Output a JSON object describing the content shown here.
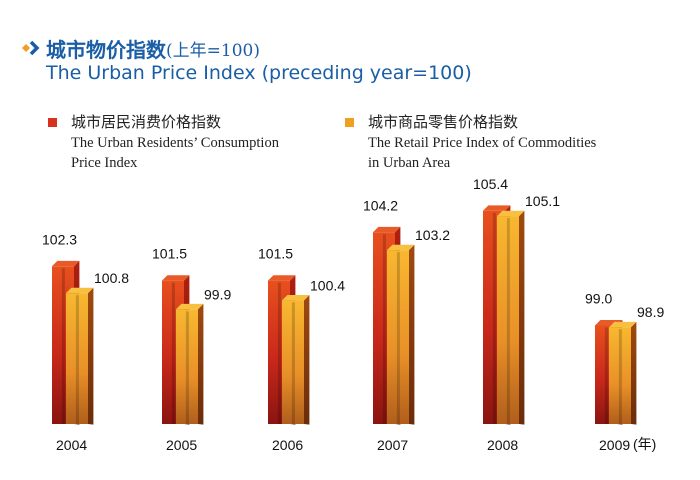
{
  "header": {
    "title_cn": "城市物价指数",
    "title_cn_suffix": "(上年=100)",
    "title_en": "The Urban Price Index (preceding year=100)",
    "bullet_icon": "chevron-right-icon"
  },
  "colors": {
    "title": "#1a5ea6",
    "bullet_orange": "#f39a2a",
    "series_consumption": "#d8321e",
    "series_retail": "#f0a020"
  },
  "legend": [
    {
      "cn": "城市居民消费价格指数",
      "en_line1": "The Urban Residents’ Consumption",
      "en_line2": "Price Index",
      "color": "#d8321e"
    },
    {
      "cn": "城市商品零售价格指数",
      "en_line1": "The Retail Price Index of Commodities",
      "en_line2": "in Urban Area",
      "color": "#f0a020"
    }
  ],
  "chart_data": {
    "type": "bar",
    "title": "The Urban Price Index (preceding year=100)",
    "xlabel": "",
    "ylabel": "",
    "x_unit_label": "(年)",
    "categories": [
      "2004",
      "2005",
      "2006",
      "2007",
      "2008",
      "2009"
    ],
    "series": [
      {
        "name": "The Urban Residents’ Consumption Price Index",
        "values": [
          102.3,
          101.5,
          101.5,
          104.2,
          105.4,
          99.0
        ],
        "labels": [
          "102.3",
          "101.5",
          "101.5",
          "104.2",
          "105.4",
          "99.0"
        ]
      },
      {
        "name": "The Retail Price Index of Commodities in Urban Area",
        "values": [
          100.8,
          99.9,
          100.4,
          103.2,
          105.1,
          98.9
        ],
        "labels": [
          "100.8",
          "99.9",
          "100.4",
          "103.2",
          "105.1",
          "98.9"
        ]
      }
    ],
    "ylim": [
      93.5,
      106
    ],
    "grid": false,
    "legend_position": "top"
  }
}
